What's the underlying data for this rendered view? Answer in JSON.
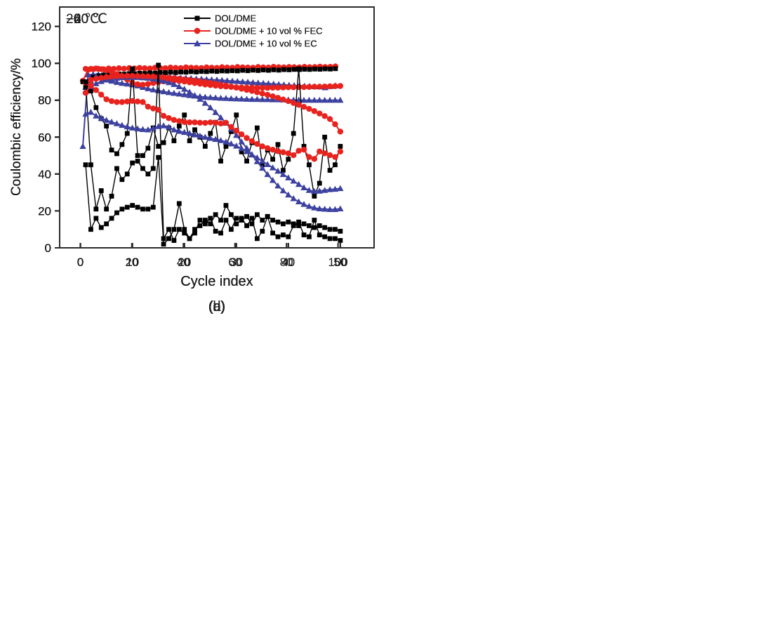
{
  "figure": {
    "background": "#ffffff",
    "frame_color": "#2b2b2b"
  },
  "chart_data": [
    {
      "type": "line",
      "title": "20 ℃",
      "caption": "(a)",
      "xlabel": "Cycle index",
      "ylabel": "Coulombic efficiency/%",
      "xlim": [
        -8,
        114
      ],
      "ylim": [
        0,
        130.5
      ],
      "xticks": [
        0,
        20,
        40,
        60,
        80,
        100
      ],
      "yticks": [
        0,
        20,
        40,
        60,
        80,
        100,
        120
      ],
      "grid": false,
      "legend_position": "top-right-inside",
      "x": [
        1,
        3,
        5,
        7,
        9,
        11,
        13,
        15,
        17,
        19,
        21,
        23,
        25,
        27,
        29,
        31,
        33,
        35,
        37,
        39,
        41,
        43,
        45,
        47,
        49,
        51,
        53,
        55,
        57,
        59,
        61,
        63,
        65,
        67,
        69,
        71,
        73,
        75,
        77,
        79,
        81,
        83,
        85,
        87,
        89,
        91,
        93,
        95,
        97,
        99
      ],
      "series": [
        {
          "name": "DOL/DME",
          "color": "#000000",
          "marker": "square",
          "values": [
            90,
            85.5,
            92.5,
            93.3,
            93.6,
            93.8,
            94.0,
            94.2,
            94.1,
            94.4,
            94.3,
            94.6,
            94.5,
            94.8,
            94.7,
            95.0,
            94.9,
            95.2,
            95.0,
            95.3,
            95.2,
            95.5,
            95.3,
            95.6,
            95.5,
            95.8,
            95.6,
            95.9,
            95.8,
            96.0,
            95.9,
            96.2,
            96.0,
            96.3,
            96.1,
            96.4,
            96.2,
            96.5,
            96.3,
            96.6,
            96.5,
            96.7,
            96.6,
            96.8,
            96.7,
            96.9,
            96.8,
            97.0,
            96.9,
            97.1
          ]
        },
        {
          "name": "DOL/DME + 10 vol % FEC",
          "color": "#e8231e",
          "marker": "circle",
          "values": [
            90.5,
            96.5,
            96.8,
            97.0,
            96.8,
            97.2,
            97.0,
            97.3,
            97.1,
            97.4,
            97.2,
            97.5,
            97.3,
            97.2,
            97.6,
            97.4,
            97.3,
            97.7,
            97.5,
            97.4,
            97.8,
            97.6,
            97.5,
            97.4,
            97.8,
            97.6,
            97.5,
            97.9,
            97.7,
            97.6,
            98.0,
            97.8,
            97.7,
            97.6,
            98.0,
            97.8,
            97.7,
            98.1,
            97.9,
            97.8,
            98.0,
            97.9,
            97.8,
            98.1,
            97.9,
            98.0,
            98.2,
            98.0,
            98.1,
            98.3
          ]
        },
        {
          "name": "DOL/DME + 10 vol % EC",
          "color": "#3c41a0",
          "marker": "triangle",
          "values": [
            55,
            93.8,
            94.0,
            93.9,
            93.8,
            93.7,
            93.6,
            93.5,
            93.4,
            93.3,
            93.2,
            93.1,
            93.0,
            92.9,
            92.8,
            92.6,
            92.5,
            92.4,
            92.2,
            92.1,
            92.0,
            91.8,
            91.6,
            91.5,
            91.3,
            91.1,
            91.0,
            90.8,
            90.6,
            90.4,
            90.2,
            90.0,
            89.8,
            89.6,
            89.4,
            89.2,
            89.0,
            88.8,
            88.6,
            88.4,
            88.2,
            88.0,
            87.9,
            87.7,
            87.6,
            87.4,
            87.3,
            86.8,
            87.5,
            87.8
          ]
        }
      ]
    },
    {
      "type": "line",
      "title": "−20 ℃",
      "caption": "(b)",
      "xlabel": "Cycle index",
      "ylabel": "Coulombic efficiency/%",
      "xlim": [
        -4,
        56.5
      ],
      "ylim": [
        0,
        130.5
      ],
      "xticks": [
        0,
        10,
        20,
        30,
        40,
        50
      ],
      "yticks": [
        0,
        20,
        40,
        60,
        80,
        100,
        120
      ],
      "grid": false,
      "legend_position": "top-right-inside",
      "x": [
        1,
        2,
        3,
        4,
        5,
        6,
        7,
        8,
        9,
        10,
        11,
        12,
        13,
        14,
        15,
        16,
        17,
        18,
        19,
        20,
        21,
        22,
        23,
        24,
        25,
        26,
        27,
        28,
        29,
        30,
        31,
        32,
        33,
        34,
        35,
        36,
        37,
        38,
        39,
        40,
        41,
        42,
        43,
        44,
        45,
        46,
        47,
        48,
        49,
        50
      ],
      "series": [
        {
          "name": "DOL/DME",
          "color": "#000000",
          "marker": "square",
          "values": [
            87,
            85,
            76,
            70,
            66,
            53,
            51,
            56,
            62,
            97,
            50,
            50,
            54,
            65,
            55,
            57,
            65,
            58,
            66,
            72,
            58,
            64,
            60,
            55,
            62,
            68,
            47,
            55,
            63,
            72,
            52,
            47,
            57,
            65,
            45,
            53,
            48,
            56,
            42,
            48,
            62,
            97,
            55,
            45,
            28,
            35,
            60,
            42,
            45,
            55
          ]
        },
        {
          "name": "DOL/DME + 10 vol % FEC",
          "color": "#e8231e",
          "marker": "circle",
          "values": [
            97,
            97,
            97.2,
            96.8,
            96.2,
            95.3,
            94.2,
            92.8,
            91.2,
            89.5,
            88.6,
            88.4,
            88.8,
            89.3,
            89.8,
            90.2,
            90.5,
            90.6,
            90.4,
            90.1,
            89.7,
            89.3,
            88.9,
            88.5,
            88.2,
            87.9,
            87.6,
            87.4,
            87.2,
            87.0,
            86.9,
            86.8,
            86.8,
            86.7,
            86.7,
            86.7,
            86.8,
            86.8,
            86.9,
            87.0,
            87.0,
            87.1,
            87.1,
            87.2,
            87.3,
            87.3,
            87.4,
            87.5,
            87.6,
            87.7
          ]
        },
        {
          "name": "DOL/DME + 10 vol % EC",
          "color": "#3c41a0",
          "marker": "triangle",
          "values": [
            87,
            90.5,
            93,
            92.2,
            91.3,
            90.4,
            89.7,
            89.2,
            88.8,
            88.4,
            87.8,
            87.0,
            86.3,
            85.7,
            85.2,
            84.7,
            84.2,
            83.8,
            83.4,
            83.0,
            82.6,
            82.3,
            82.0,
            81.7,
            81.5,
            81.3,
            81.1,
            81.0,
            80.9,
            80.8,
            80.7,
            80.6,
            80.5,
            80.5,
            80.4,
            80.4,
            80.3,
            80.3,
            80.2,
            80.2,
            80.1,
            80.1,
            80.0,
            80.0,
            80.0,
            80.0,
            80.0,
            80.0,
            80.0,
            80.0
          ]
        }
      ]
    },
    {
      "type": "line",
      "title": "−40 ℃",
      "caption": "(c)",
      "xlabel": "Cycle index",
      "ylabel": "Coulombic efficiency/%",
      "xlim": [
        -4,
        56.5
      ],
      "ylim": [
        0,
        130.5
      ],
      "xticks": [
        0,
        10,
        20,
        30,
        40,
        50
      ],
      "yticks": [
        0,
        20,
        40,
        60,
        80,
        100,
        120
      ],
      "grid": false,
      "legend_position": "top-right-inside",
      "x": [
        1,
        2,
        3,
        4,
        5,
        6,
        7,
        8,
        9,
        10,
        11,
        12,
        13,
        14,
        15,
        16,
        17,
        18,
        19,
        20,
        21,
        22,
        23,
        24,
        25,
        26,
        27,
        28,
        29,
        30,
        31,
        32,
        33,
        34,
        35,
        36,
        37,
        38,
        39,
        40,
        41,
        42,
        43,
        44,
        45,
        46,
        47,
        48,
        49,
        50
      ],
      "series": [
        {
          "name": "DOL/DME",
          "color": "#000000",
          "marker": "square",
          "values": [
            90,
            45,
            21,
            31,
            21,
            28,
            43,
            37,
            40,
            46,
            47,
            43,
            40,
            43,
            99,
            5,
            10,
            4,
            10,
            8,
            5,
            10,
            12,
            15,
            13,
            18,
            15,
            23,
            18,
            13,
            15,
            17,
            13,
            18,
            15,
            17,
            15,
            14,
            13,
            14,
            13,
            12,
            13,
            12,
            11,
            12,
            11,
            10,
            10,
            9
          ]
        },
        {
          "name": "DOL/DME + 10 vol % FEC",
          "color": "#e8231e",
          "marker": "circle",
          "values": [
            89.5,
            91.0,
            91.6,
            92.1,
            92.5,
            92.8,
            93.0,
            93.1,
            93.2,
            93.2,
            93.1,
            93.0,
            92.9,
            92.8,
            92.6,
            92.4,
            92.2,
            91.9,
            91.6,
            91.3,
            91.0,
            90.6,
            90.2,
            89.8,
            89.4,
            88.9,
            88.4,
            87.9,
            87.4,
            86.8,
            86.2,
            85.6,
            85.0,
            84.3,
            83.6,
            82.9,
            82.1,
            81.3,
            80.4,
            79.5,
            78.5,
            77.5,
            76.4,
            75.3,
            74.1,
            72.8,
            71.4,
            69.8,
            67.0,
            63.0
          ]
        },
        {
          "name": "DOL/DME + 10 vol % EC",
          "color": "#3c41a0",
          "marker": "triangle",
          "values": [
            85,
            87.5,
            89,
            90.2,
            91,
            91.6,
            92,
            92.3,
            92.5,
            92.5,
            92.4,
            92.2,
            92,
            91.6,
            91.1,
            90.4,
            89.6,
            88.6,
            87.4,
            86,
            84.4,
            82.6,
            80.6,
            78.4,
            76,
            73.4,
            70.6,
            67.6,
            64.4,
            61,
            57.5,
            54,
            50.4,
            46.8,
            43.2,
            39.8,
            36.6,
            33.6,
            31,
            28.7,
            26.7,
            25,
            23.6,
            22.5,
            21.7,
            21.2,
            21,
            20.8,
            20.8,
            21.2
          ]
        }
      ]
    },
    {
      "type": "line",
      "title": "−60 ℃",
      "caption": "(d)",
      "xlabel": "Cycle index",
      "ylabel": "Coulombic efficiency/%",
      "xlim": [
        -4,
        56.5
      ],
      "ylim": [
        0,
        130.5
      ],
      "xticks": [
        0,
        10,
        20,
        30,
        40,
        50
      ],
      "yticks": [
        0,
        20,
        40,
        60,
        80,
        100,
        120
      ],
      "grid": false,
      "legend_position": "top-right-inside",
      "x": [
        1,
        2,
        3,
        4,
        5,
        6,
        7,
        8,
        9,
        10,
        11,
        12,
        13,
        14,
        15,
        16,
        17,
        18,
        19,
        20,
        21,
        22,
        23,
        24,
        25,
        26,
        27,
        28,
        29,
        30,
        31,
        32,
        33,
        34,
        35,
        36,
        37,
        38,
        39,
        40,
        41,
        42,
        43,
        44,
        45,
        46,
        47,
        48,
        49,
        50
      ],
      "series": [
        {
          "name": "DOL/DME",
          "color": "#000000",
          "marker": "square",
          "values": [
            45,
            10,
            16,
            11,
            13,
            16,
            19,
            21,
            22,
            23,
            22,
            21,
            21,
            22,
            49,
            2,
            5,
            10,
            24,
            10,
            5,
            8,
            15,
            13,
            16,
            9,
            8,
            15,
            10,
            16,
            16,
            12,
            16,
            5,
            9,
            17,
            8,
            6,
            7,
            6,
            12,
            14,
            7,
            6,
            15,
            7,
            6,
            5,
            5,
            4
          ]
        },
        {
          "name": "DOL/DME + 10 vol % FEC",
          "color": "#e8231e",
          "marker": "circle",
          "values": [
            84,
            88,
            85.5,
            83,
            80.5,
            79.5,
            79,
            79,
            79.3,
            79.6,
            79.3,
            79,
            76.5,
            75.5,
            74.8,
            71.5,
            70.3,
            69.3,
            68.7,
            68.2,
            68,
            68,
            67.8,
            67.7,
            68,
            67.8,
            67.4,
            67.8,
            65.5,
            63.5,
            61.5,
            59.5,
            57.8,
            56.3,
            55,
            54,
            53.2,
            52.4,
            51.8,
            51.2,
            50.2,
            52.6,
            53.2,
            49.2,
            48.2,
            52.2,
            51.2,
            50.2,
            49.2,
            52.2
          ]
        },
        {
          "name": "DOL/DME + 10 vol % EC",
          "color": "#3c41a0",
          "marker": "triangle",
          "values": [
            72.5,
            73.5,
            71.5,
            70.3,
            69.2,
            68.2,
            67.3,
            66.4,
            65.6,
            65,
            64.5,
            64.2,
            64,
            64.8,
            65.8,
            66.2,
            65.4,
            64,
            63.2,
            62.6,
            62,
            61.3,
            60.6,
            60,
            59.4,
            58.8,
            58.2,
            57.4,
            56.4,
            55.2,
            53.8,
            52.2,
            50.6,
            48.8,
            47,
            45.2,
            43.4,
            41.6,
            39.8,
            38,
            36.2,
            34.4,
            32.6,
            31.2,
            30.6,
            30.8,
            31.2,
            31.6,
            31.8,
            32.2
          ]
        }
      ]
    }
  ]
}
